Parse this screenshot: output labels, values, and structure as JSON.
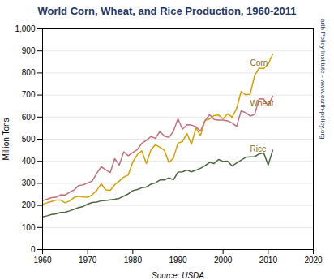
{
  "chart_data": {
    "type": "line",
    "title": "World Corn, Wheat, and Rice Production, 1960-2011",
    "title_color": "#1F3864",
    "xlabel": "Source: USDA",
    "ylabel": "Million Tons",
    "y2label": "Earth Policy Institute - www.earth-policy.org",
    "y2label_color": "#1F3864",
    "xlim": [
      1960,
      2020
    ],
    "ylim": [
      0,
      1000
    ],
    "xticks": [
      1960,
      1970,
      1980,
      1990,
      2000,
      2010,
      2020
    ],
    "yticks": [
      0,
      100,
      200,
      300,
      400,
      500,
      600,
      700,
      800,
      900,
      {
        "value": 1000,
        "label": "1,000"
      }
    ],
    "grid": true,
    "x": [
      1960,
      1961,
      1962,
      1963,
      1964,
      1965,
      1966,
      1967,
      1968,
      1969,
      1970,
      1971,
      1972,
      1973,
      1974,
      1975,
      1976,
      1977,
      1978,
      1979,
      1980,
      1981,
      1982,
      1983,
      1984,
      1985,
      1986,
      1987,
      1988,
      1989,
      1990,
      1991,
      1992,
      1993,
      1994,
      1995,
      1996,
      1997,
      1998,
      1999,
      2000,
      2001,
      2002,
      2003,
      2004,
      2005,
      2006,
      2007,
      2008,
      2009,
      2010,
      2011
    ],
    "series": [
      {
        "color": "#D4A000",
        "values": [
          205,
          212,
          218,
          224,
          224,
          212,
          220,
          236,
          242,
          238,
          237,
          248,
          268,
          298,
          270,
          268,
          294,
          310,
          328,
          338,
          397,
          430,
          447,
          390,
          450,
          475,
          464,
          450,
          394,
          415,
          482,
          489,
          526,
          477,
          551,
          516,
          585,
          591,
          607,
          609,
          592,
          615,
          600,
          638,
          716,
          701,
          704,
          788,
          822,
          820,
          840,
          885
        ]
      },
      {
        "color": "#C07080",
        "values": [
          222,
          228,
          235,
          237,
          248,
          247,
          260,
          270,
          290,
          293,
          302,
          310,
          345,
          375,
          362,
          349,
          412,
          382,
          443,
          425,
          440,
          453,
          481,
          495,
          512,
          504,
          535,
          514,
          508,
          536,
          592,
          545,
          565,
          564,
          556,
          537,
          583,
          611,
          589,
          586,
          586,
          583,
          573,
          558,
          628,
          621,
          605,
          612,
          683,
          682,
          651,
          695
        ]
      },
      {
        "color": "#4A6741",
        "values": [
          148,
          153,
          159,
          162,
          168,
          169,
          175,
          183,
          190,
          195,
          206,
          213,
          215,
          221,
          222,
          225,
          228,
          232,
          242,
          252,
          267,
          272,
          280,
          283,
          296,
          302,
          315,
          315,
          325,
          316,
          351,
          352,
          360,
          352,
          360,
          368,
          380,
          395,
          390,
          408,
          399,
          401,
          379,
          392,
          405,
          418,
          420,
          421,
          433,
          438,
          383,
          450
        ]
      }
    ],
    "annotations": [
      {
        "text": "Corn",
        "x": 2006,
        "y": 845,
        "color": "#8B6914"
      },
      {
        "text": "Wheat",
        "x": 2006,
        "y": 660,
        "color": "#8B6914"
      },
      {
        "text": "Rice",
        "x": 2006,
        "y": 455,
        "color": "#8B6914"
      }
    ]
  }
}
